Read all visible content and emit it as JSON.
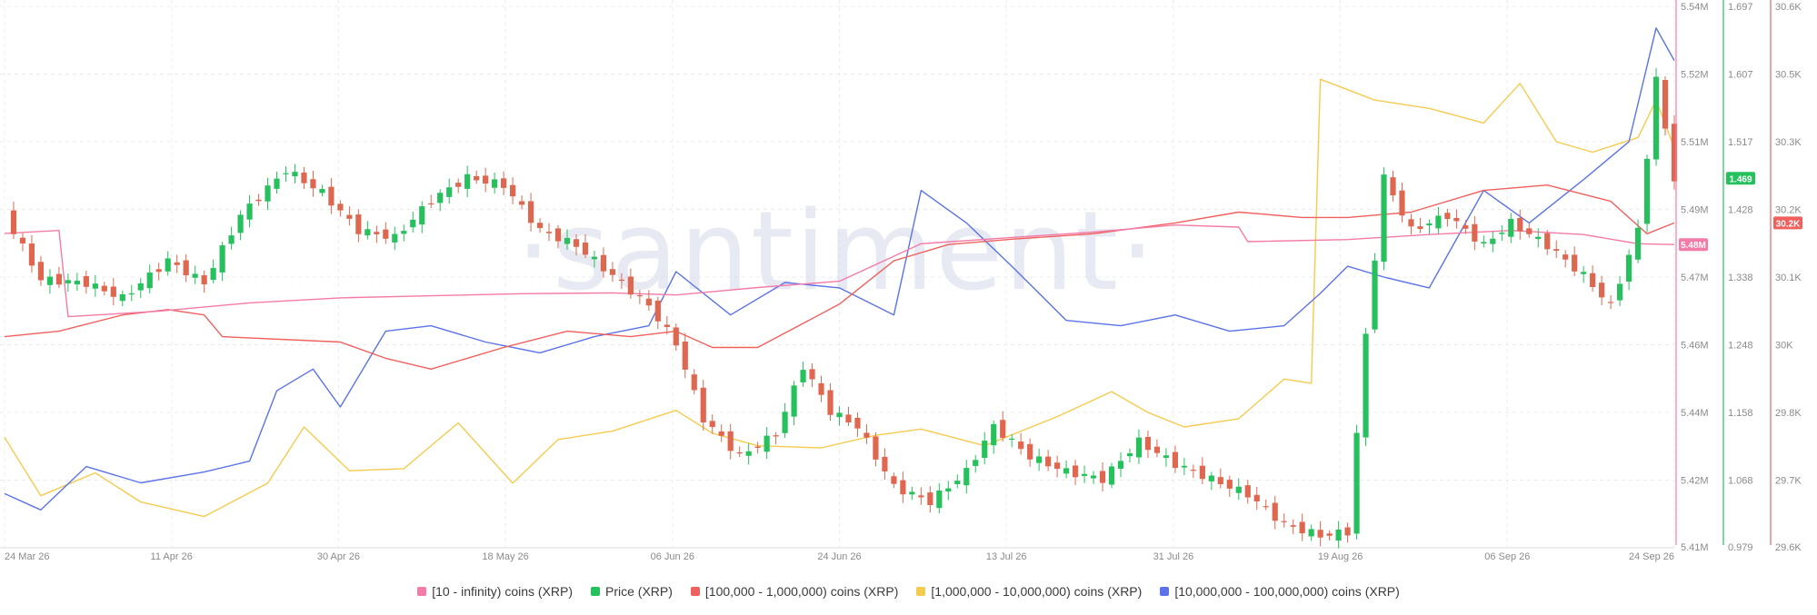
{
  "chart_data": {
    "type": "line",
    "watermark": "·santiment·",
    "x_axis": {
      "tick_labels": [
        "24 Mar 26",
        "11 Apr 26",
        "30 Apr 26",
        "18 May 26",
        "06 Jun 26",
        "24 Jun 26",
        "13 Jul 26",
        "31 Jul 26",
        "19 Aug 26",
        "06 Sep 26",
        "24 Sep 26"
      ],
      "range": [
        "2026-03-24",
        "2026-09-24"
      ]
    },
    "y_axes": [
      {
        "id": "holders",
        "color": "#f47ba8",
        "range": [
          5.41,
          5.54
        ],
        "unit": "M",
        "tick_labels": [
          "5.54M",
          "5.52M",
          "5.51M",
          "5.49M",
          "5.47M",
          "5.46M",
          "5.44M",
          "5.42M",
          "5.41M"
        ],
        "current_label": "5.48M"
      },
      {
        "id": "price",
        "color": "#26c15d",
        "range": [
          0.979,
          1.697
        ],
        "tick_labels": [
          "1.697",
          "1.607",
          "1.517",
          "1.428",
          "1.338",
          "1.248",
          "1.158",
          "1.068",
          "0.979"
        ],
        "current_label": "1.469"
      },
      {
        "id": "supply",
        "color": "#f0605d",
        "range": [
          29.6,
          30.6
        ],
        "unit": "K",
        "tick_labels": [
          "30.6K",
          "30.5K",
          "30.3K",
          "30.2K",
          "30.1K",
          "30K",
          "29.8K",
          "29.7K",
          "29.6K"
        ],
        "current_label": "30.2K"
      }
    ],
    "grid": true,
    "legend_position": "bottom",
    "series": [
      {
        "name": "[10 - infinity) coins (XRP)",
        "axis": "holders",
        "color": "#f47ba8",
        "style": "line",
        "points": [
          [
            "2026-03-24",
            5.4855
          ],
          [
            "2026-03-30",
            5.4862
          ],
          [
            "2026-03-31",
            5.4655
          ],
          [
            "2026-04-10",
            5.4668
          ],
          [
            "2026-04-20",
            5.4688
          ],
          [
            "2026-04-30",
            5.47
          ],
          [
            "2026-05-10",
            5.4705
          ],
          [
            "2026-05-20",
            5.471
          ],
          [
            "2026-05-30",
            5.4712
          ],
          [
            "2026-06-06",
            5.4707
          ],
          [
            "2026-06-15",
            5.4725
          ],
          [
            "2026-06-24",
            5.474
          ],
          [
            "2026-07-03",
            5.483
          ],
          [
            "2026-07-13",
            5.4845
          ],
          [
            "2026-07-22",
            5.4858
          ],
          [
            "2026-07-31",
            5.4875
          ],
          [
            "2026-08-07",
            5.487
          ],
          [
            "2026-08-08",
            5.4835
          ],
          [
            "2026-08-19",
            5.484
          ],
          [
            "2026-08-28",
            5.4852
          ],
          [
            "2026-09-06",
            5.4862
          ],
          [
            "2026-09-14",
            5.4852
          ],
          [
            "2026-09-20",
            5.483
          ],
          [
            "2026-09-24",
            5.4828
          ]
        ]
      },
      {
        "name": "Price (XRP)",
        "axis": "price",
        "color": "#26c15d",
        "style": "candles",
        "points": [
          [
            "2026-03-24",
            1.42
          ],
          [
            "2026-03-28",
            1.335
          ],
          [
            "2026-04-02",
            1.33
          ],
          [
            "2026-04-06",
            1.31
          ],
          [
            "2026-04-11",
            1.36
          ],
          [
            "2026-04-15",
            1.33
          ],
          [
            "2026-04-19",
            1.42
          ],
          [
            "2026-04-24",
            1.48
          ],
          [
            "2026-04-28",
            1.45
          ],
          [
            "2026-05-02",
            1.4
          ],
          [
            "2026-05-06",
            1.39
          ],
          [
            "2026-05-10",
            1.44
          ],
          [
            "2026-05-14",
            1.47
          ],
          [
            "2026-05-18",
            1.46
          ],
          [
            "2026-05-22",
            1.4
          ],
          [
            "2026-05-26",
            1.38
          ],
          [
            "2026-05-30",
            1.34
          ],
          [
            "2026-06-03",
            1.3
          ],
          [
            "2026-06-06",
            1.25
          ],
          [
            "2026-06-09",
            1.15
          ],
          [
            "2026-06-13",
            1.1
          ],
          [
            "2026-06-17",
            1.13
          ],
          [
            "2026-06-20",
            1.22
          ],
          [
            "2026-06-23",
            1.16
          ],
          [
            "2026-06-26",
            1.14
          ],
          [
            "2026-06-30",
            1.06
          ],
          [
            "2026-07-04",
            1.04
          ],
          [
            "2026-07-08",
            1.08
          ],
          [
            "2026-07-11",
            1.14
          ],
          [
            "2026-07-15",
            1.1
          ],
          [
            "2026-07-19",
            1.08
          ],
          [
            "2026-07-23",
            1.07
          ],
          [
            "2026-07-27",
            1.12
          ],
          [
            "2026-07-31",
            1.09
          ],
          [
            "2026-08-04",
            1.07
          ],
          [
            "2026-08-08",
            1.05
          ],
          [
            "2026-08-12",
            1.01
          ],
          [
            "2026-08-16",
            0.995
          ],
          [
            "2026-08-19",
            1.0
          ],
          [
            "2026-08-21",
            1.26
          ],
          [
            "2026-08-23",
            1.47
          ],
          [
            "2026-08-26",
            1.4
          ],
          [
            "2026-08-30",
            1.42
          ],
          [
            "2026-09-03",
            1.38
          ],
          [
            "2026-09-06",
            1.41
          ],
          [
            "2026-09-10",
            1.38
          ],
          [
            "2026-09-14",
            1.34
          ],
          [
            "2026-09-17",
            1.3
          ],
          [
            "2026-09-20",
            1.4
          ],
          [
            "2026-09-22",
            1.6
          ],
          [
            "2026-09-24",
            1.469
          ]
        ]
      },
      {
        "name": "[100,000  - 1,000,000) coins (XRP)",
        "axis": "supply",
        "color": "#f0605d",
        "style": "line",
        "points": [
          [
            "2026-03-24",
            29.99
          ],
          [
            "2026-03-30",
            30.0
          ],
          [
            "2026-04-06",
            30.03
          ],
          [
            "2026-04-11",
            30.04
          ],
          [
            "2026-04-15",
            30.03
          ],
          [
            "2026-04-17",
            29.99
          ],
          [
            "2026-04-30",
            29.98
          ],
          [
            "2026-05-05",
            29.95
          ],
          [
            "2026-05-10",
            29.93
          ],
          [
            "2026-05-18",
            29.97
          ],
          [
            "2026-05-25",
            30.0
          ],
          [
            "2026-06-01",
            29.99
          ],
          [
            "2026-06-06",
            30.0
          ],
          [
            "2026-06-10",
            29.97
          ],
          [
            "2026-06-15",
            29.97
          ],
          [
            "2026-06-24",
            30.05
          ],
          [
            "2026-06-30",
            30.13
          ],
          [
            "2026-07-06",
            30.16
          ],
          [
            "2026-07-13",
            30.17
          ],
          [
            "2026-07-22",
            30.18
          ],
          [
            "2026-07-31",
            30.2
          ],
          [
            "2026-08-07",
            30.22
          ],
          [
            "2026-08-14",
            30.21
          ],
          [
            "2026-08-19",
            30.21
          ],
          [
            "2026-08-26",
            30.22
          ],
          [
            "2026-09-03",
            30.26
          ],
          [
            "2026-09-10",
            30.27
          ],
          [
            "2026-09-17",
            30.24
          ],
          [
            "2026-09-21",
            30.18
          ],
          [
            "2026-09-24",
            30.2
          ]
        ]
      },
      {
        "name": "[1,000,000 - 10,000,000) coins (XRP)",
        "axis": "holders",
        "color": "#f5cb4f",
        "style": "line",
        "points": [
          [
            "2026-03-24",
            5.4365
          ],
          [
            "2026-03-28",
            5.4225
          ],
          [
            "2026-04-03",
            5.428
          ],
          [
            "2026-04-08",
            5.421
          ],
          [
            "2026-04-15",
            5.4175
          ],
          [
            "2026-04-22",
            5.4255
          ],
          [
            "2026-04-26",
            5.439
          ],
          [
            "2026-05-01",
            5.4285
          ],
          [
            "2026-05-07",
            5.429
          ],
          [
            "2026-05-13",
            5.44
          ],
          [
            "2026-05-19",
            5.4255
          ],
          [
            "2026-05-24",
            5.436
          ],
          [
            "2026-05-30",
            5.438
          ],
          [
            "2026-06-06",
            5.443
          ],
          [
            "2026-06-10",
            5.4375
          ],
          [
            "2026-06-15",
            5.4345
          ],
          [
            "2026-06-22",
            5.434
          ],
          [
            "2026-06-28",
            5.437
          ],
          [
            "2026-07-03",
            5.4385
          ],
          [
            "2026-07-10",
            5.4345
          ],
          [
            "2026-07-18",
            5.4415
          ],
          [
            "2026-07-24",
            5.4475
          ],
          [
            "2026-07-28",
            5.4425
          ],
          [
            "2026-08-01",
            5.439
          ],
          [
            "2026-08-07",
            5.441
          ],
          [
            "2026-08-12",
            5.4505
          ],
          [
            "2026-08-15",
            5.4495
          ],
          [
            "2026-08-16",
            5.5225
          ],
          [
            "2026-08-22",
            5.5175
          ],
          [
            "2026-08-28",
            5.5155
          ],
          [
            "2026-09-03",
            5.512
          ],
          [
            "2026-09-07",
            5.5215
          ],
          [
            "2026-09-11",
            5.5075
          ],
          [
            "2026-09-15",
            5.505
          ],
          [
            "2026-09-20",
            5.5085
          ],
          [
            "2026-09-22",
            5.5175
          ],
          [
            "2026-09-24",
            5.506
          ]
        ]
      },
      {
        "name": "[10,000,000 - 100,000,000) coins (XRP)",
        "axis": "supply",
        "color": "#5b73e8",
        "style": "line",
        "points": [
          [
            "2026-03-24",
            29.7
          ],
          [
            "2026-03-28",
            29.67
          ],
          [
            "2026-04-02",
            29.75
          ],
          [
            "2026-04-08",
            29.72
          ],
          [
            "2026-04-15",
            29.74
          ],
          [
            "2026-04-20",
            29.76
          ],
          [
            "2026-04-23",
            29.89
          ],
          [
            "2026-04-27",
            29.93
          ],
          [
            "2026-04-30",
            29.86
          ],
          [
            "2026-05-05",
            30.0
          ],
          [
            "2026-05-10",
            30.01
          ],
          [
            "2026-05-16",
            29.98
          ],
          [
            "2026-05-22",
            29.96
          ],
          [
            "2026-05-28",
            29.99
          ],
          [
            "2026-06-03",
            30.01
          ],
          [
            "2026-06-06",
            30.11
          ],
          [
            "2026-06-12",
            30.03
          ],
          [
            "2026-06-18",
            30.09
          ],
          [
            "2026-06-24",
            30.08
          ],
          [
            "2026-06-30",
            30.03
          ],
          [
            "2026-07-03",
            30.26
          ],
          [
            "2026-07-08",
            30.2
          ],
          [
            "2026-07-13",
            30.12
          ],
          [
            "2026-07-19",
            30.02
          ],
          [
            "2026-07-25",
            30.01
          ],
          [
            "2026-07-31",
            30.03
          ],
          [
            "2026-08-06",
            30.0
          ],
          [
            "2026-08-12",
            30.01
          ],
          [
            "2026-08-16",
            30.07
          ],
          [
            "2026-08-19",
            30.12
          ],
          [
            "2026-08-23",
            30.1
          ],
          [
            "2026-08-28",
            30.08
          ],
          [
            "2026-09-03",
            30.26
          ],
          [
            "2026-09-08",
            30.2
          ],
          [
            "2026-09-14",
            30.28
          ],
          [
            "2026-09-19",
            30.35
          ],
          [
            "2026-09-22",
            30.56
          ],
          [
            "2026-09-24",
            30.5
          ]
        ]
      }
    ]
  }
}
